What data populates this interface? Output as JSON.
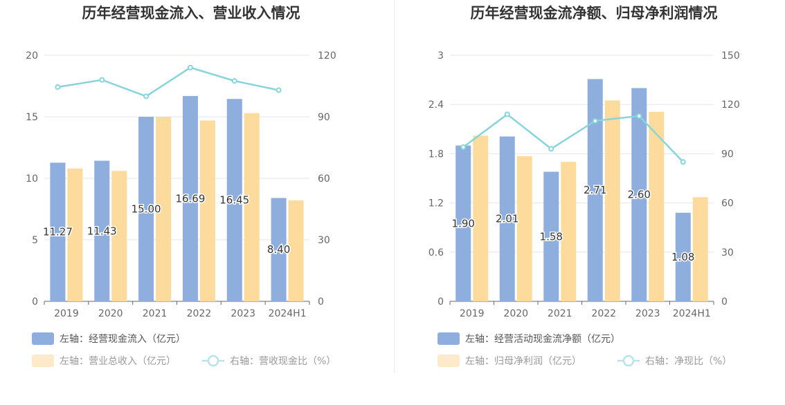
{
  "chart_data": [
    {
      "type": "bar",
      "title": "历年经营现金流入、营业收入情况",
      "categories": [
        "2019",
        "2020",
        "2021",
        "2022",
        "2023",
        "2024H1"
      ],
      "left_axis": {
        "ticks": [
          "0",
          "5",
          "10",
          "15",
          "20"
        ],
        "range": [
          0,
          20
        ]
      },
      "right_axis": {
        "ticks": [
          "0",
          "30",
          "60",
          "90",
          "120"
        ],
        "range": [
          0,
          120
        ]
      },
      "series": [
        {
          "name": "左轴：经营现金流入（亿元）",
          "kind": "bar",
          "axis": "left",
          "color": "#8eaedd",
          "values": [
            11.27,
            11.43,
            15.0,
            16.69,
            16.45,
            8.4
          ],
          "labels": [
            "11.27",
            "11.43",
            "15.00",
            "16.69",
            "16.45",
            "8.40"
          ]
        },
        {
          "name": "左轴：营业总收入（亿元）",
          "kind": "bar",
          "axis": "left",
          "color": "#fddb9d",
          "values": [
            10.8,
            10.6,
            15.0,
            14.7,
            15.3,
            8.2
          ]
        },
        {
          "name": "右轴：营收现金比（%）",
          "kind": "line",
          "axis": "right",
          "color": "#86d4dc",
          "values": [
            104.5,
            108.0,
            100.0,
            114.0,
            107.5,
            103.0
          ]
        }
      ]
    },
    {
      "type": "bar",
      "title": "历年经营现金流净额、归母净利润情况",
      "categories": [
        "2019",
        "2020",
        "2021",
        "2022",
        "2023",
        "2024H1"
      ],
      "left_axis": {
        "ticks": [
          "0",
          "0.6",
          "1.2",
          "1.8",
          "2.4",
          "3"
        ],
        "range": [
          0,
          3
        ]
      },
      "right_axis": {
        "ticks": [
          "0",
          "30",
          "60",
          "90",
          "120",
          "150"
        ],
        "range": [
          0,
          150
        ]
      },
      "series": [
        {
          "name": "左轴：经营活动现金流净额（亿元）",
          "kind": "bar",
          "axis": "left",
          "color": "#8eaedd",
          "values": [
            1.9,
            2.01,
            1.58,
            2.71,
            2.6,
            1.08
          ],
          "labels": [
            "1.90",
            "2.01",
            "1.58",
            "2.71",
            "2.60",
            "1.08"
          ]
        },
        {
          "name": "左轴：归母净利润（亿元）",
          "kind": "bar",
          "axis": "left",
          "color": "#fddb9d",
          "values": [
            2.02,
            1.77,
            1.7,
            2.45,
            2.31,
            1.27
          ]
        },
        {
          "name": "右轴：净现比（%）",
          "kind": "line",
          "axis": "right",
          "color": "#86d4dc",
          "values": [
            94,
            114,
            93,
            110,
            113,
            85
          ]
        }
      ]
    }
  ]
}
